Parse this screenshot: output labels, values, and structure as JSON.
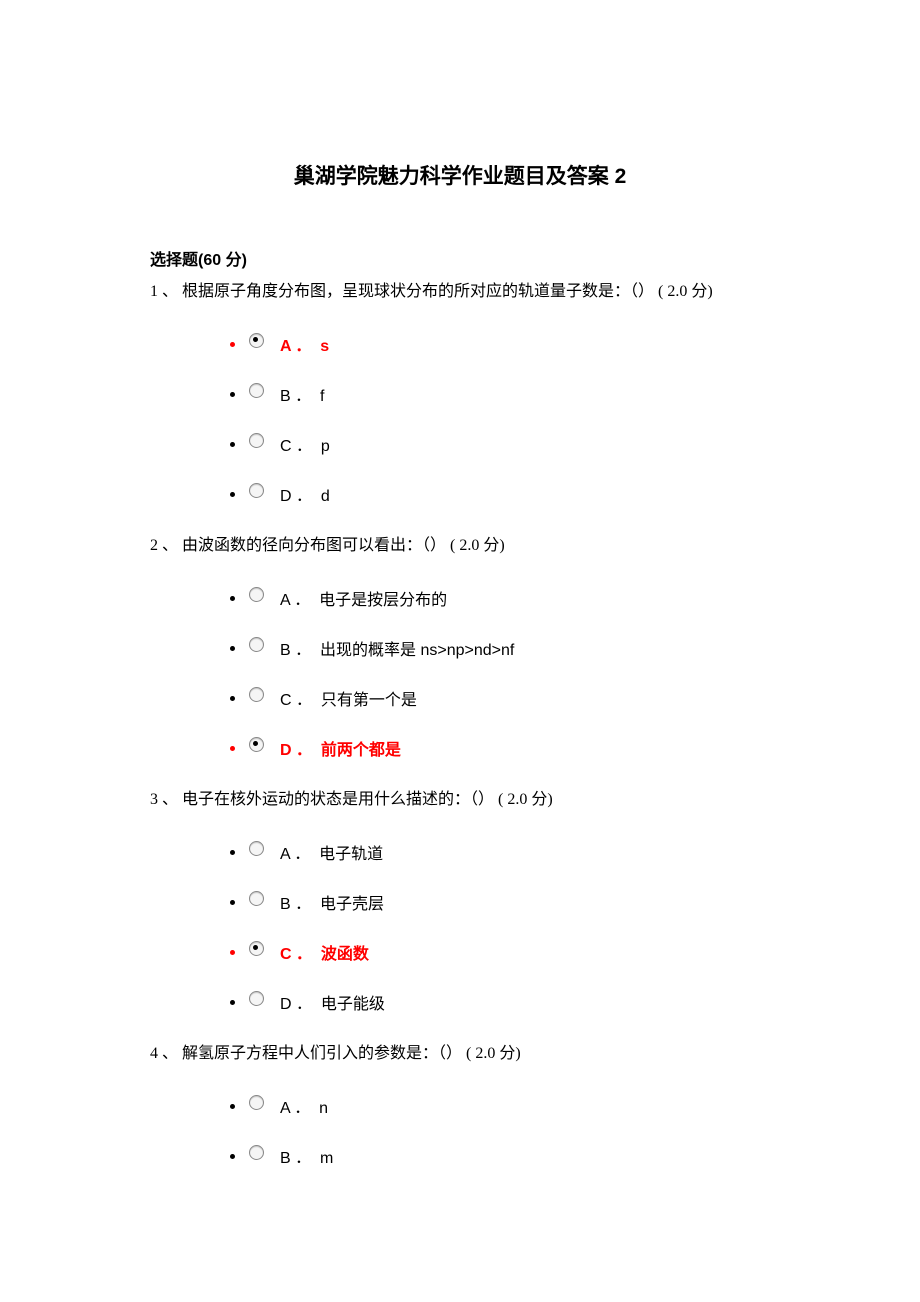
{
  "title": "巢湖学院魅力科学作业题目及答案 2",
  "section_header": "选择题(60 分)",
  "colors": {
    "text": "#000000",
    "correct": "#ff0000",
    "background": "#ffffff"
  },
  "fontsize": {
    "title": 21,
    "body": 16
  },
  "questions": [
    {
      "num": "1 、",
      "text": "根据原子角度分布图，呈现球状分布的所对应的轨道量子数是：（） ( 2.0  分)",
      "options": [
        {
          "label": "A ．  s",
          "selected": true,
          "correct": true
        },
        {
          "label": "B ．  f",
          "selected": false,
          "correct": false
        },
        {
          "label": "C ．  p",
          "selected": false,
          "correct": false
        },
        {
          "label": "D ．  d",
          "selected": false,
          "correct": false
        }
      ]
    },
    {
      "num": "2 、",
      "text": "由波函数的径向分布图可以看出：（） ( 2.0  分)",
      "options": [
        {
          "label": "A ．  电子是按层分布的",
          "selected": false,
          "correct": false
        },
        {
          "label": "B ．  出现的概率是 ns>np>nd>nf",
          "selected": false,
          "correct": false
        },
        {
          "label": "C ．  只有第一个是",
          "selected": false,
          "correct": false
        },
        {
          "label": "D ．  前两个都是",
          "selected": true,
          "correct": true
        }
      ]
    },
    {
      "num": "3 、",
      "text": "电子在核外运动的状态是用什么描述的：（） ( 2.0  分)",
      "options": [
        {
          "label": "A ．  电子轨道",
          "selected": false,
          "correct": false
        },
        {
          "label": "B ．  电子壳层",
          "selected": false,
          "correct": false
        },
        {
          "label": "C ．  波函数",
          "selected": true,
          "correct": true
        },
        {
          "label": "D ．  电子能级",
          "selected": false,
          "correct": false
        }
      ]
    },
    {
      "num": "4 、",
      "text": "解氢原子方程中人们引入的参数是：（） ( 2.0  分)",
      "options": [
        {
          "label": "A ．  n",
          "selected": false,
          "correct": false
        },
        {
          "label": "B ．  m",
          "selected": false,
          "correct": false
        }
      ]
    }
  ]
}
